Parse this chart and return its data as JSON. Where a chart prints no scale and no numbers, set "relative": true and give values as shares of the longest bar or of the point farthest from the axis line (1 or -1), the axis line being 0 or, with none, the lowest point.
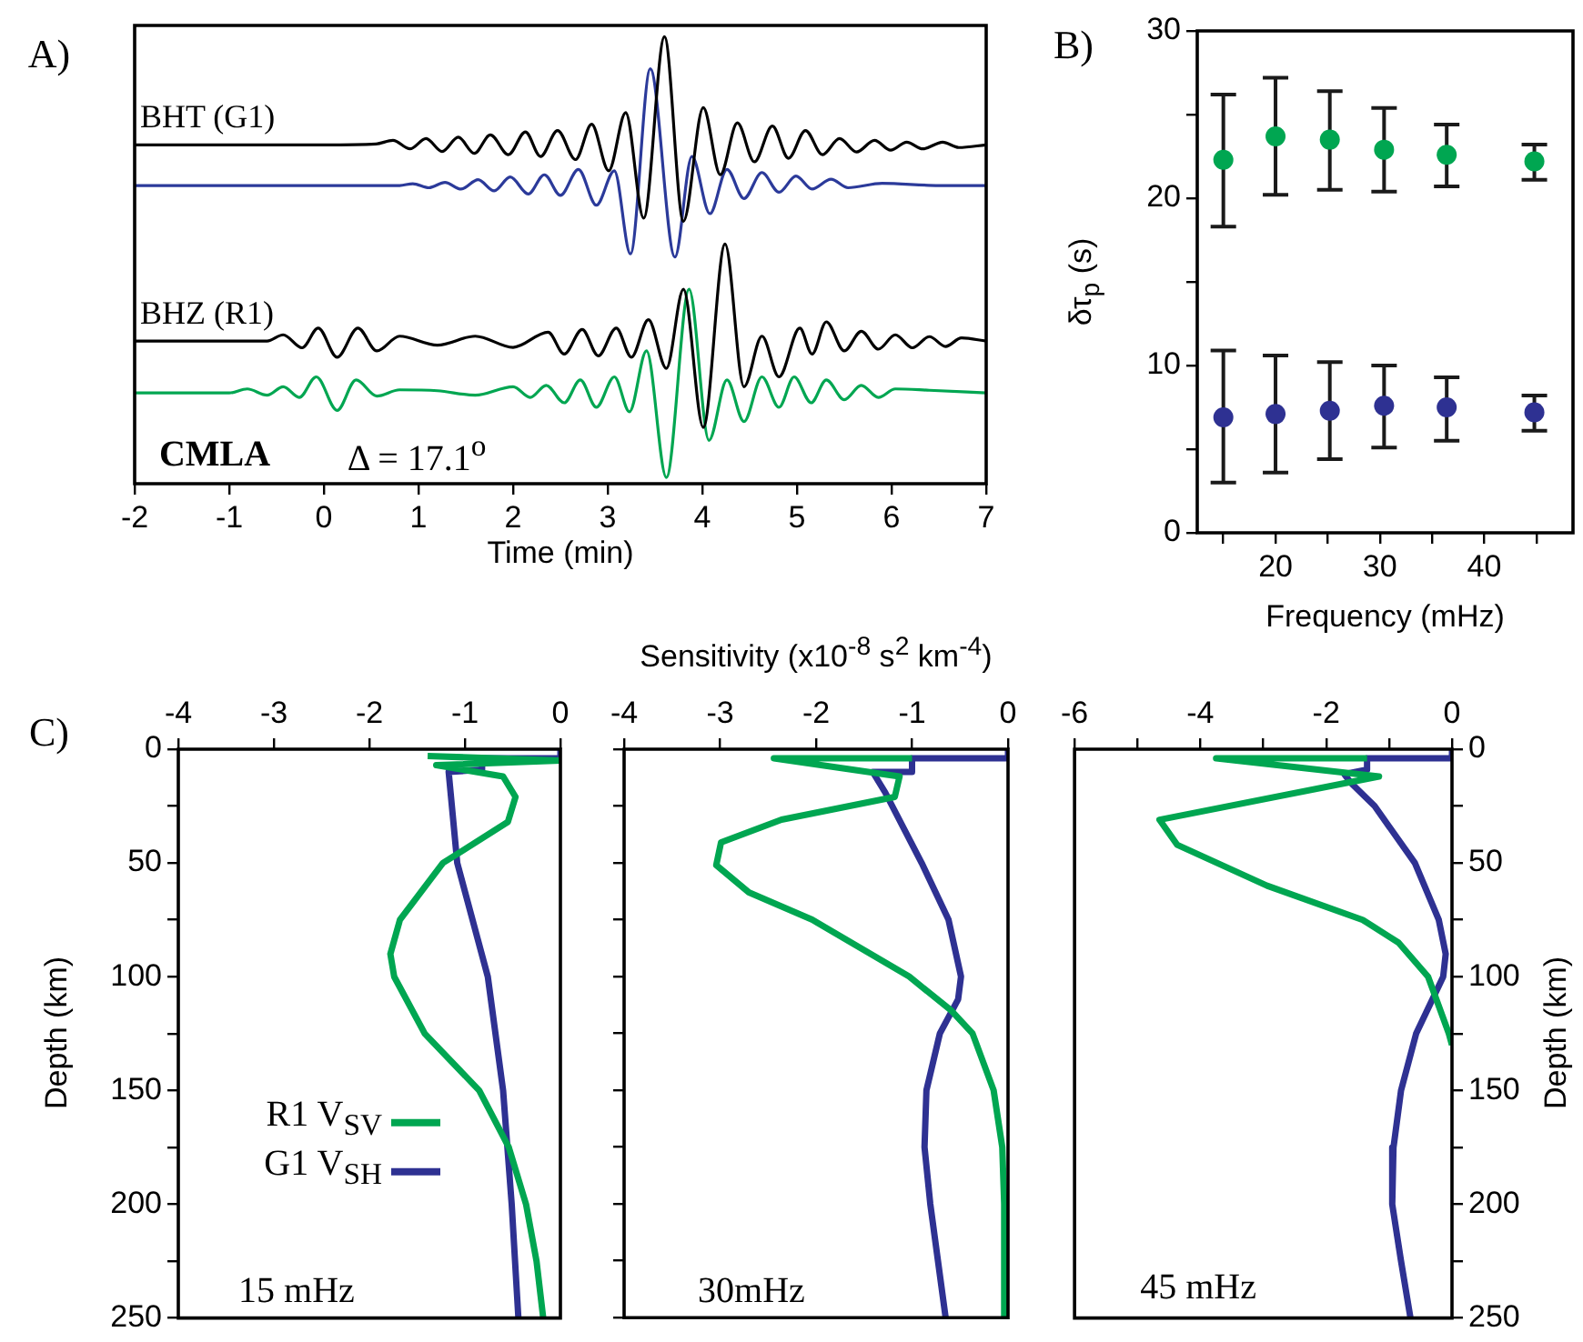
{
  "chart_data": [
    {
      "type": "line",
      "relative": true,
      "xlabel": "Time  (min)",
      "xlim": [
        -2,
        7
      ],
      "xticks": [
        -2,
        -1,
        0,
        1,
        2,
        3,
        4,
        5,
        6,
        7
      ],
      "tick_labels": "x",
      "annotations": [
        "A)",
        "CMLA",
        "Δ = 17.1$^{o}$"
      ],
      "series": [
        {
          "name": "BHT (G1)",
          "color": "#000000",
          "x": [
            -2,
            -1,
            0,
            0.55,
            0.73,
            0.91,
            1.08,
            1.25,
            1.42,
            1.59,
            1.76,
            1.95,
            2.13,
            2.29,
            2.47,
            2.66,
            2.83,
            3.01,
            3.19,
            3.38,
            3.6,
            3.8,
            4.01,
            4.19,
            4.37,
            4.55,
            4.74,
            4.91,
            5.09,
            5.27,
            5.45,
            5.63,
            5.82,
            5.99,
            6.16,
            6.33,
            6.54,
            6.71,
            7
          ],
          "values": [
            0.758,
            0.758,
            0.758,
            0.76,
            0.768,
            0.749,
            0.772,
            0.743,
            0.775,
            0.739,
            0.78,
            0.736,
            0.787,
            0.732,
            0.79,
            0.725,
            0.804,
            0.7,
            0.83,
            0.594,
            1.0,
            0.587,
            0.841,
            0.691,
            0.807,
            0.72,
            0.8,
            0.728,
            0.79,
            0.736,
            0.772,
            0.742,
            0.768,
            0.746,
            0.764,
            0.749,
            0.764,
            0.752,
            0.758
          ]
        },
        {
          "color": "#2b3a9a",
          "x": [
            -2,
            0,
            0.8,
            0.94,
            1.11,
            1.28,
            1.45,
            1.63,
            1.8,
            1.97,
            2.16,
            2.33,
            2.5,
            2.69,
            2.88,
            3.07,
            3.24,
            3.45,
            3.71,
            3.89,
            4.08,
            4.26,
            4.44,
            4.63,
            4.81,
            4.99,
            5.16,
            5.36,
            5.54,
            5.9,
            6.5,
            7
          ],
          "values": [
            0.667,
            0.667,
            0.667,
            0.671,
            0.662,
            0.674,
            0.659,
            0.68,
            0.655,
            0.686,
            0.648,
            0.691,
            0.645,
            0.703,
            0.623,
            0.7,
            0.514,
            0.928,
            0.507,
            0.732,
            0.604,
            0.703,
            0.638,
            0.696,
            0.652,
            0.688,
            0.659,
            0.681,
            0.662,
            0.672,
            0.667,
            0.667
          ]
        },
        {
          "name": "BHZ (R1)",
          "color": "#000000",
          "x": [
            -2,
            -1,
            -0.6,
            -0.43,
            -0.23,
            -0.06,
            0.14,
            0.36,
            0.56,
            0.8,
            1.2,
            1.6,
            2.0,
            2.37,
            2.54,
            2.73,
            2.9,
            3.09,
            3.25,
            3.43,
            3.62,
            3.8,
            4.01,
            4.24,
            4.44,
            4.63,
            4.81,
            5.03,
            5.16,
            5.31,
            5.5,
            5.68,
            5.86,
            6.04,
            6.22,
            6.4,
            6.57,
            6.74,
            7
          ],
          "values": [
            0.319,
            0.319,
            0.319,
            0.333,
            0.304,
            0.348,
            0.283,
            0.348,
            0.297,
            0.33,
            0.31,
            0.33,
            0.305,
            0.339,
            0.29,
            0.345,
            0.286,
            0.348,
            0.283,
            0.367,
            0.258,
            0.435,
            0.126,
            0.536,
            0.217,
            0.33,
            0.239,
            0.348,
            0.29,
            0.362,
            0.297,
            0.341,
            0.301,
            0.333,
            0.304,
            0.329,
            0.307,
            0.326,
            0.319
          ]
        },
        {
          "color": "#00a651",
          "x": [
            -2,
            -1,
            -0.81,
            -0.6,
            -0.43,
            -0.26,
            -0.08,
            0.14,
            0.34,
            0.56,
            0.8,
            1.2,
            1.6,
            2.0,
            2.18,
            2.35,
            2.54,
            2.71,
            2.88,
            3.07,
            3.23,
            3.41,
            3.62,
            3.86,
            4.07,
            4.26,
            4.44,
            4.63,
            4.81,
            4.97,
            5.15,
            5.31,
            5.5,
            5.68,
            5.86,
            6.04,
            6.4,
            7
          ],
          "values": [
            0.203,
            0.203,
            0.212,
            0.198,
            0.217,
            0.193,
            0.239,
            0.164,
            0.232,
            0.196,
            0.21,
            0.208,
            0.198,
            0.217,
            0.193,
            0.22,
            0.181,
            0.232,
            0.171,
            0.239,
            0.161,
            0.297,
            0.014,
            0.435,
            0.097,
            0.232,
            0.139,
            0.239,
            0.171,
            0.239,
            0.181,
            0.232,
            0.188,
            0.22,
            0.193,
            0.212,
            0.209,
            0.203
          ]
        }
      ]
    },
    {
      "type": "scatter",
      "xlabel": "Frequency (mHz)",
      "ylabel": "δτ$_{p}$ (s)",
      "xlim": [
        12.5,
        48.5
      ],
      "xticks": [
        {
          "value": 15,
          "label": null
        },
        20,
        {
          "value": 25,
          "label": null
        },
        30,
        {
          "value": 35,
          "label": null
        },
        40,
        {
          "value": 45,
          "label": null
        }
      ],
      "ylim": [
        0,
        30
      ],
      "yticks": [
        0,
        {
          "value": 5,
          "label": null
        },
        10,
        {
          "value": 15,
          "label": null
        },
        20,
        {
          "value": 25,
          "label": null
        },
        30
      ],
      "marker": "circle",
      "annotations": [
        "B)"
      ],
      "x": [
        15.0,
        20.0,
        25.2,
        30.4,
        36.4,
        44.8
      ],
      "series": [
        {
          "color": "#00a651",
          "values": [
            22.3,
            23.7,
            23.5,
            22.9,
            22.6,
            22.2
          ],
          "errors": [
            [
              18.3,
              26.2
            ],
            [
              20.2,
              27.2
            ],
            [
              20.5,
              26.4
            ],
            [
              20.4,
              25.4
            ],
            [
              20.7,
              24.4
            ],
            [
              21.1,
              23.2
            ]
          ]
        },
        {
          "color": "#2e3192",
          "values": [
            6.9,
            7.1,
            7.3,
            7.6,
            7.5,
            7.2
          ],
          "errors": [
            [
              3.0,
              10.9
            ],
            [
              3.6,
              10.6
            ],
            [
              4.4,
              10.2
            ],
            [
              5.1,
              10.0
            ],
            [
              5.5,
              9.3
            ],
            [
              6.1,
              8.2
            ]
          ]
        }
      ]
    },
    {
      "type": "line",
      "xlim": [
        -4,
        0
      ],
      "xticks": [
        -4,
        -3,
        -2,
        -1,
        0
      ],
      "ylim": [
        250,
        0
      ],
      "yticks": [
        0,
        {
          "value": 25,
          "label": null
        },
        50,
        {
          "value": 75,
          "label": null
        },
        100,
        {
          "value": 125,
          "label": null
        },
        150,
        {
          "value": 175,
          "label": null
        },
        200,
        {
          "value": 225,
          "label": null
        },
        250
      ],
      "ylabel": "Depth (km)",
      "legend": "right",
      "annotations": [
        "C)",
        "15 mHz"
      ],
      "series": [
        {
          "name": "R1 V$_{SV}$",
          "color": "#00a651",
          "x": [
            -1.39,
            0,
            -1.3,
            -0.6,
            -0.47,
            -0.55,
            -1.23,
            -1.68,
            -1.78,
            -1.74,
            -1.42,
            -0.85,
            -0.54,
            -0.36,
            -0.25,
            -0.18
          ],
          "values": [
            3,
            5,
            7,
            12,
            21,
            32,
            50,
            75,
            90,
            100,
            125,
            150,
            175,
            200,
            225,
            250
          ]
        },
        {
          "name": "G1 V$_{SH}$",
          "color": "#2e3192",
          "x": [
            0,
            0,
            -0.82,
            -0.82,
            -1.17,
            -1.08,
            -0.76,
            -0.6,
            -0.51,
            -0.44
          ],
          "values": [
            0,
            4,
            4,
            9,
            10,
            50,
            100,
            150,
            200,
            250
          ]
        }
      ]
    },
    {
      "type": "line",
      "xlim": [
        -4,
        0
      ],
      "xticks": [
        -4,
        -3,
        -2,
        -1,
        0
      ],
      "xlabel": "Sensitivity (x10$^{-8}$ s$^{2}$ km$^{-4}$)",
      "ylim": [
        250,
        0
      ],
      "yticks": [
        0,
        {
          "value": 25,
          "label": null
        },
        50,
        {
          "value": 75,
          "label": null
        },
        100,
        {
          "value": 125,
          "label": null
        },
        150,
        {
          "value": 175,
          "label": null
        },
        200,
        {
          "value": 225,
          "label": null
        },
        250
      ],
      "tick_labels": "x",
      "annotations": [
        "30mHz"
      ],
      "series": [
        {
          "color": "#00a651",
          "x": [
            -1.0,
            -2.44,
            -1.13,
            -1.18,
            -2.36,
            -2.99,
            -3.04,
            -2.7,
            -2.04,
            -1.03,
            -0.59,
            -0.37,
            -0.15,
            -0.06,
            -0.04,
            -0.04
          ],
          "values": [
            4,
            4,
            12,
            21,
            31,
            41,
            51,
            63,
            75,
            100,
            115,
            125,
            150,
            175,
            200,
            250
          ]
        },
        {
          "color": "#2e3192",
          "x": [
            0,
            0,
            -1.0,
            -1.0,
            -1.41,
            -1.28,
            -0.9,
            -0.62,
            -0.49,
            -0.52,
            -0.71,
            -0.85,
            -0.87,
            -0.81,
            -0.65
          ],
          "values": [
            0,
            4,
            4,
            10,
            10,
            19,
            50,
            75,
            100,
            110,
            125,
            150,
            175,
            200,
            250
          ]
        }
      ]
    },
    {
      "type": "line",
      "xlim": [
        -6,
        0
      ],
      "xticks": [
        -6,
        {
          "value": -5,
          "label": null
        },
        -4,
        {
          "value": -3,
          "label": null
        },
        -2,
        {
          "value": -1,
          "label": null
        },
        0
      ],
      "y2lim": [
        250,
        0
      ],
      "y2ticks": [
        0,
        {
          "value": 25,
          "label": null
        },
        50,
        {
          "value": 75,
          "label": null
        },
        100,
        {
          "value": 125,
          "label": null
        },
        150,
        {
          "value": 175,
          "label": null
        },
        200,
        {
          "value": 225,
          "label": null
        },
        250
      ],
      "y2label": "Depth (km)",
      "annotations": [
        "45 mHz"
      ],
      "series": [
        {
          "color": "#00a651",
          "axis": "y2",
          "x": [
            -1.35,
            -3.75,
            -1.16,
            -4.65,
            -4.37,
            -2.94,
            -1.42,
            -0.85,
            -0.38,
            -0.05,
            0
          ],
          "values": [
            4,
            4,
            12,
            31,
            42,
            60,
            75,
            85,
            100,
            125,
            130
          ]
        },
        {
          "color": "#2e3192",
          "axis": "y2",
          "x": [
            0,
            0,
            -1.35,
            -1.35,
            -1.71,
            -1.6,
            -1.23,
            -0.59,
            -0.21,
            -0.1,
            -0.14,
            -0.57,
            -0.81,
            -0.93,
            -0.95,
            -0.81,
            -0.66
          ],
          "values": [
            0,
            4,
            4,
            9,
            11,
            15,
            25,
            50,
            75,
            90,
            100,
            125,
            150,
            175,
            200,
            225,
            250
          ]
        }
      ]
    }
  ]
}
